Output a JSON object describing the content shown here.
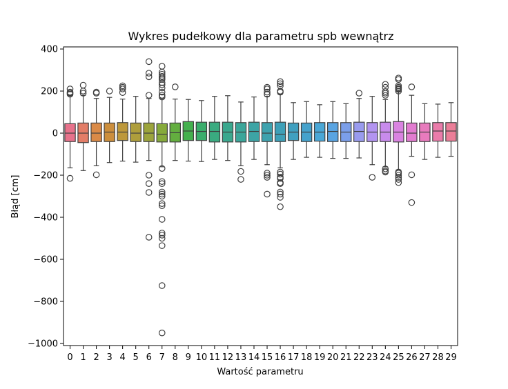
{
  "chart_data": {
    "type": "box",
    "title": "Wykres pudełkowy dla parametru spb wewnątrz",
    "xlabel": "Wartość parametru",
    "ylabel": "Błąd [cm]",
    "ylim": [
      -1010,
      410
    ],
    "yticks": [
      400,
      200,
      0,
      -200,
      -400,
      -600,
      -800,
      -1000
    ],
    "ytick_labels": [
      "400",
      "200",
      "0",
      "−200",
      "−400",
      "−600",
      "−800",
      "−1000"
    ],
    "categories": [
      "0",
      "1",
      "2",
      "3",
      "4",
      "5",
      "6",
      "7",
      "8",
      "9",
      "10",
      "11",
      "12",
      "13",
      "14",
      "15",
      "16",
      "17",
      "18",
      "19",
      "20",
      "21",
      "22",
      "23",
      "24",
      "25",
      "26",
      "27",
      "28",
      "29"
    ],
    "colors": [
      "#e7728b",
      "#e37d67",
      "#da8a47",
      "#cc8e3c",
      "#bd983b",
      "#ae9e3c",
      "#9ca43c",
      "#86aa3b",
      "#63ae3f",
      "#44b04e",
      "#3aad6c",
      "#3aab80",
      "#3aa88e",
      "#3ba69a",
      "#3da4a5",
      "#3ea2ae",
      "#3ea0b8",
      "#40a0c0",
      "#45a2cc",
      "#4aa7d6",
      "#59a4e2",
      "#7b9fea",
      "#999bee",
      "#b294f0",
      "#c88bec",
      "#d983e0",
      "#e27cd0",
      "#e87bbd",
      "#ea7caa",
      "#eb7e98"
    ],
    "boxes": [
      {
        "q1": -40,
        "median": 0,
        "q3": 45,
        "whisker_low": -165,
        "whisker_high": 180,
        "outliers": [
          210,
          195,
          190,
          185,
          -215
        ]
      },
      {
        "q1": -45,
        "median": 0,
        "q3": 48,
        "whisker_low": -178,
        "whisker_high": 180,
        "outliers": [
          228,
          200,
          190
        ]
      },
      {
        "q1": -40,
        "median": 0,
        "q3": 48,
        "whisker_low": -155,
        "whisker_high": 165,
        "outliers": [
          195,
          190,
          -198
        ]
      },
      {
        "q1": -40,
        "median": 5,
        "q3": 48,
        "whisker_low": -140,
        "whisker_high": 170,
        "outliers": [
          200
        ]
      },
      {
        "q1": -35,
        "median": 5,
        "q3": 50,
        "whisker_low": -133,
        "whisker_high": 162,
        "outliers": [
          225,
          218,
          210,
          193
        ]
      },
      {
        "q1": -40,
        "median": 0,
        "q3": 48,
        "whisker_low": -138,
        "whisker_high": 175,
        "outliers": []
      },
      {
        "q1": -40,
        "median": 0,
        "q3": 48,
        "whisker_low": -130,
        "whisker_high": 165,
        "outliers": [
          340,
          285,
          268,
          180,
          -200,
          -240,
          -282,
          -495
        ]
      },
      {
        "q1": -42,
        "median": -5,
        "q3": 45,
        "whisker_low": -160,
        "whisker_high": 165,
        "outliers": [
          318,
          290,
          280,
          270,
          262,
          255,
          240,
          230,
          215,
          195,
          180,
          172,
          -168,
          -230,
          -240,
          -280,
          -290,
          -300,
          -335,
          -345,
          -410,
          -475,
          -485,
          -500,
          -535,
          -725,
          -950
        ]
      },
      {
        "q1": -42,
        "median": 2,
        "q3": 48,
        "whisker_low": -130,
        "whisker_high": 162,
        "outliers": [
          220
        ]
      },
      {
        "q1": -35,
        "median": 10,
        "q3": 55,
        "whisker_low": -133,
        "whisker_high": 160,
        "outliers": []
      },
      {
        "q1": -35,
        "median": 8,
        "q3": 52,
        "whisker_low": -135,
        "whisker_high": 155,
        "outliers": []
      },
      {
        "q1": -42,
        "median": 8,
        "q3": 52,
        "whisker_low": -125,
        "whisker_high": 175,
        "outliers": []
      },
      {
        "q1": -42,
        "median": 5,
        "q3": 52,
        "whisker_low": -130,
        "whisker_high": 178,
        "outliers": []
      },
      {
        "q1": -42,
        "median": 5,
        "q3": 50,
        "whisker_low": -155,
        "whisker_high": 148,
        "outliers": [
          -182,
          -220
        ]
      },
      {
        "q1": -40,
        "median": 8,
        "q3": 52,
        "whisker_low": -125,
        "whisker_high": 172,
        "outliers": []
      },
      {
        "q1": -40,
        "median": 0,
        "q3": 50,
        "whisker_low": -150,
        "whisker_high": 175,
        "outliers": [
          218,
          210,
          195,
          185,
          -190,
          -200,
          -210,
          -290
        ]
      },
      {
        "q1": -40,
        "median": -5,
        "q3": 52,
        "whisker_low": -165,
        "whisker_high": 185,
        "outliers": [
          245,
          235,
          225,
          200,
          195,
          -185,
          -195,
          -210,
          -215,
          -235,
          -240,
          -280,
          -290,
          -305,
          -350
        ]
      },
      {
        "q1": -35,
        "median": 5,
        "q3": 48,
        "whisker_low": -125,
        "whisker_high": 145,
        "outliers": []
      },
      {
        "q1": -40,
        "median": 5,
        "q3": 48,
        "whisker_low": -115,
        "whisker_high": 150,
        "outliers": []
      },
      {
        "q1": -38,
        "median": 5,
        "q3": 50,
        "whisker_low": -115,
        "whisker_high": 135,
        "outliers": []
      },
      {
        "q1": -40,
        "median": 8,
        "q3": 50,
        "whisker_low": -120,
        "whisker_high": 150,
        "outliers": []
      },
      {
        "q1": -40,
        "median": 5,
        "q3": 50,
        "whisker_low": -120,
        "whisker_high": 140,
        "outliers": []
      },
      {
        "q1": -40,
        "median": 8,
        "q3": 52,
        "whisker_low": -118,
        "whisker_high": 165,
        "outliers": [
          190
        ]
      },
      {
        "q1": -40,
        "median": 5,
        "q3": 50,
        "whisker_low": -150,
        "whisker_high": 175,
        "outliers": [
          -210
        ]
      },
      {
        "q1": -40,
        "median": 5,
        "q3": 52,
        "whisker_low": -160,
        "whisker_high": 160,
        "outliers": [
          232,
          218,
          198,
          190,
          180,
          -170,
          -180,
          -185
        ]
      },
      {
        "q1": -42,
        "median": 5,
        "q3": 55,
        "whisker_low": -175,
        "whisker_high": 200,
        "outliers": [
          262,
          255,
          225,
          218,
          212,
          208,
          200,
          -185,
          -190,
          -200,
          -210,
          -220,
          -235
        ]
      },
      {
        "q1": -40,
        "median": 0,
        "q3": 48,
        "whisker_low": -110,
        "whisker_high": 180,
        "outliers": [
          220,
          -198,
          -330
        ]
      },
      {
        "q1": -40,
        "median": 5,
        "q3": 48,
        "whisker_low": -125,
        "whisker_high": 140,
        "outliers": []
      },
      {
        "q1": -38,
        "median": 10,
        "q3": 50,
        "whisker_low": -115,
        "whisker_high": 138,
        "outliers": []
      },
      {
        "q1": -38,
        "median": 10,
        "q3": 50,
        "whisker_low": -110,
        "whisker_high": 145,
        "outliers": []
      }
    ],
    "grid": false,
    "legend": "none"
  }
}
